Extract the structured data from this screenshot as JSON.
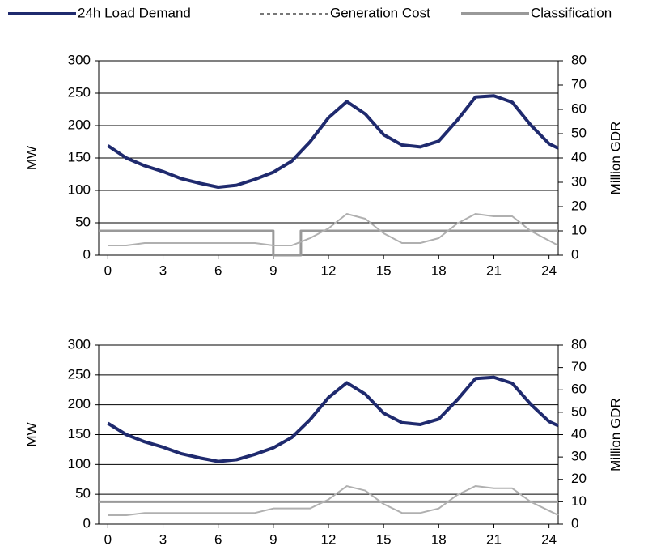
{
  "chart_data": [
    {
      "type": "line",
      "ylabel": "MW",
      "y2label": "Million GDR",
      "xlim": [
        -0.5,
        24.5
      ],
      "xticks": [
        0,
        3,
        6,
        9,
        12,
        15,
        18,
        21,
        24
      ],
      "ylim": [
        0,
        300
      ],
      "yticks": [
        0,
        50,
        100,
        150,
        200,
        250,
        300
      ],
      "y2lim": [
        0,
        80
      ],
      "y2ticks": [
        0,
        10,
        20,
        30,
        40,
        50,
        60,
        70,
        80
      ],
      "grid": true,
      "series": [
        {
          "name": "24h Load Demand",
          "color": "#1f2a6e",
          "axis": "y",
          "x": [
            0,
            1,
            2,
            3,
            4,
            5,
            6,
            7,
            8,
            9,
            10,
            11,
            12,
            13,
            14,
            15,
            16,
            17,
            18,
            19,
            20,
            21,
            22,
            23,
            24,
            24.5
          ],
          "values": [
            169,
            150,
            138,
            129,
            118,
            111,
            105,
            108,
            117,
            128,
            145,
            175,
            212,
            237,
            218,
            186,
            170,
            167,
            176,
            208,
            244,
            246,
            236,
            201,
            172,
            165
          ]
        },
        {
          "name": "Generation Cost",
          "color": "#b0b0b0",
          "axis": "y2",
          "dash": true,
          "x": [
            0,
            1,
            2,
            3,
            4,
            5,
            6,
            7,
            8,
            9,
            10,
            11,
            12,
            13,
            14,
            15,
            16,
            17,
            18,
            19,
            20,
            21,
            22,
            23,
            24,
            24.5
          ],
          "values": [
            4,
            4,
            5,
            5,
            5,
            5,
            5,
            5,
            5,
            4,
            4,
            7,
            11,
            17,
            15,
            9,
            5,
            5,
            7,
            13,
            17,
            16,
            16,
            10,
            6,
            4
          ]
        },
        {
          "name": "Classification",
          "color": "#999999",
          "axis": "y2",
          "x": [
            -0.5,
            9,
            9,
            10.5,
            10.5,
            24.5
          ],
          "values": [
            10,
            10,
            0,
            0,
            10,
            10
          ]
        }
      ]
    },
    {
      "type": "line",
      "ylabel": "MW",
      "y2label": "Million GDR",
      "xlim": [
        -0.5,
        24.5
      ],
      "xticks": [
        0,
        3,
        6,
        9,
        12,
        15,
        18,
        21,
        24
      ],
      "ylim": [
        0,
        300
      ],
      "yticks": [
        0,
        50,
        100,
        150,
        200,
        250,
        300
      ],
      "y2lim": [
        0,
        80
      ],
      "y2ticks": [
        0,
        10,
        20,
        30,
        40,
        50,
        60,
        70,
        80
      ],
      "grid": true,
      "series": [
        {
          "color": "#1f2a6e",
          "axis": "y",
          "x": [
            0,
            1,
            2,
            3,
            4,
            5,
            6,
            7,
            8,
            9,
            10,
            11,
            12,
            13,
            14,
            15,
            16,
            17,
            18,
            19,
            20,
            21,
            22,
            23,
            24,
            24.5
          ],
          "values": [
            169,
            150,
            138,
            129,
            118,
            111,
            105,
            108,
            117,
            128,
            145,
            175,
            212,
            237,
            218,
            186,
            170,
            167,
            176,
            208,
            244,
            246,
            236,
            201,
            172,
            165
          ]
        },
        {
          "color": "#b0b0b0",
          "axis": "y2",
          "x": [
            0,
            1,
            2,
            3,
            4,
            5,
            6,
            7,
            8,
            9,
            10,
            11,
            12,
            13,
            14,
            15,
            16,
            17,
            18,
            19,
            20,
            21,
            22,
            23,
            24,
            24.5
          ],
          "values": [
            4,
            4,
            5,
            5,
            5,
            5,
            5,
            5,
            5,
            7,
            7,
            7,
            11,
            17,
            15,
            9,
            5,
            5,
            7,
            13,
            17,
            16,
            16,
            10,
            6,
            4
          ]
        },
        {
          "color": "#999999",
          "axis": "y2",
          "x": [
            -0.5,
            24.5
          ],
          "values": [
            10,
            10
          ]
        }
      ]
    }
  ]
}
